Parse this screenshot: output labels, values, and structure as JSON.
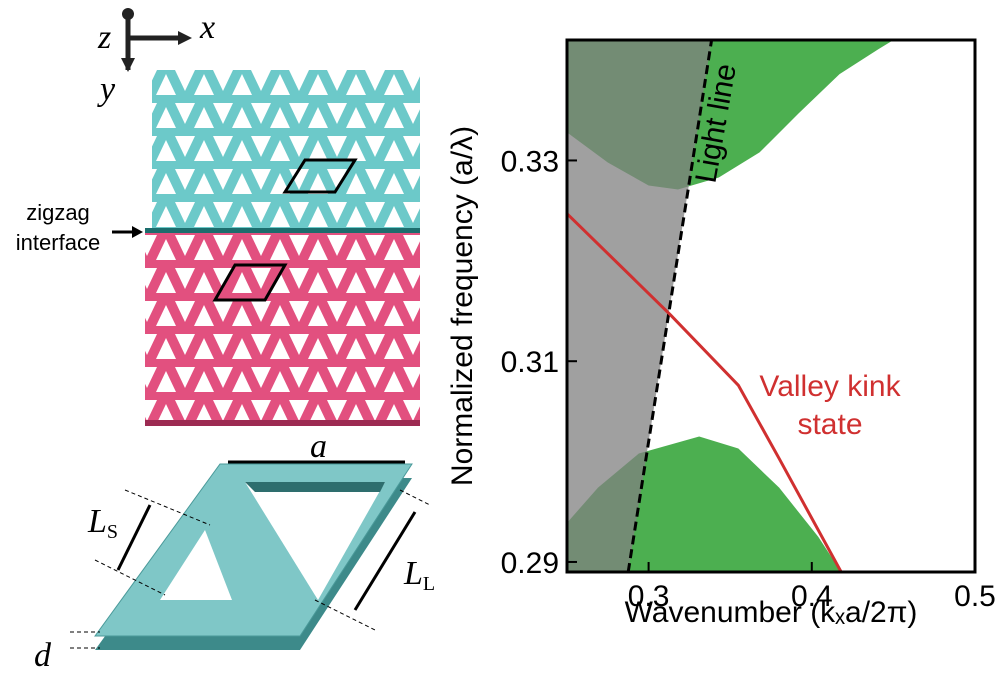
{
  "chart_data": {
    "type": "band",
    "x_label": "Wavenumber (kₓa/2π)",
    "y_label": "Normalized frequency (a/λ)",
    "xlim": [
      0.25,
      0.5
    ],
    "xticks": [
      0.3,
      0.4,
      0.5
    ],
    "ylim": [
      0.289,
      0.342
    ],
    "yticks": [
      0.29,
      0.31,
      0.33
    ],
    "bands": [
      {
        "color": "#4caf50",
        "fill": "above",
        "x": [
          0.25,
          0.275,
          0.3,
          0.318,
          0.343,
          0.368,
          0.392,
          0.417,
          0.441,
          0.45
        ],
        "values": [
          0.3328,
          0.3298,
          0.3275,
          0.3271,
          0.3283,
          0.3308,
          0.3347,
          0.3386,
          0.3411,
          0.342
        ]
      },
      {
        "color": "#4caf50",
        "fill": "below",
        "x": [
          0.25,
          0.269,
          0.294,
          0.331,
          0.355,
          0.38,
          0.404,
          0.418
        ],
        "values": [
          0.2939,
          0.2974,
          0.3008,
          0.3025,
          0.3013,
          0.2974,
          0.2925,
          0.289
        ]
      }
    ],
    "light_line": {
      "name": "Light line",
      "color": "#000000",
      "cone_color": "#808080",
      "x": [
        0.2875,
        0.3386
      ],
      "values": [
        0.289,
        0.342
      ]
    },
    "series": [
      {
        "name": [
          "Valley kink",
          "state"
        ],
        "color": "#d03030",
        "x": [
          0.25,
          0.3135,
          0.355,
          0.38,
          0.418
        ],
        "values": [
          0.3247,
          0.3146,
          0.3076,
          0.3003,
          0.289
        ]
      }
    ]
  },
  "diagram": {
    "axes": [
      "z",
      "x",
      "y"
    ],
    "interface_label": [
      "zigzag",
      "interface"
    ],
    "dimensions": {
      "a": "a",
      "ls": {
        "text": "L",
        "sub": "S"
      },
      "ll": {
        "text": "L",
        "sub": "L"
      },
      "d": "d"
    }
  }
}
